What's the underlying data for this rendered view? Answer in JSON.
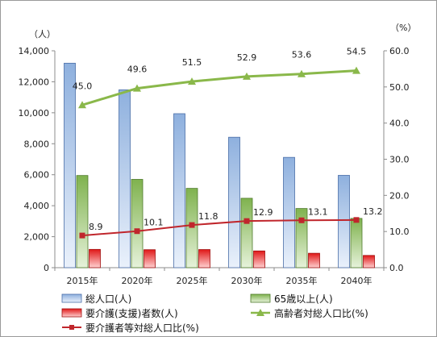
{
  "chart_data": {
    "type": "bar",
    "categories": [
      "2015年",
      "2020年",
      "2025年",
      "2030年",
      "2035年",
      "2040年"
    ],
    "left_axis": {
      "unit": "（人）",
      "ylim": [
        0,
        14000
      ],
      "ticks": [
        "0",
        "2,000",
        "4,000",
        "6,000",
        "8,000",
        "10,000",
        "12,000",
        "14,000"
      ]
    },
    "right_axis": {
      "unit": "（%）",
      "ylim": [
        0,
        60
      ],
      "ticks": [
        "0.0",
        "10.0",
        "20.0",
        "30.0",
        "40.0",
        "50.0",
        "60.0"
      ]
    },
    "bar_series": [
      {
        "name": "総人口(人)",
        "values": [
          13200,
          11480,
          9940,
          8420,
          7120,
          5960
        ],
        "color": "#8eb0de"
      },
      {
        "name": "65歳以上(人)",
        "values": [
          5950,
          5700,
          5120,
          4480,
          3820,
          3180
        ],
        "color": "#90c060"
      },
      {
        "name": "要介護(支援)者数(人)",
        "values": [
          1180,
          1160,
          1170,
          1080,
          930,
          790
        ],
        "color": "#e02020"
      }
    ],
    "line_series": [
      {
        "name": "高齢者対総人口比(%)",
        "values": [
          45.0,
          49.6,
          51.5,
          52.9,
          53.6,
          54.5
        ],
        "labels": [
          "45.0",
          "49.6",
          "51.5",
          "52.9",
          "53.6",
          "54.5"
        ],
        "color": "#8ab84a"
      },
      {
        "name": "要介護者等対総人口比(%)",
        "values": [
          8.9,
          10.1,
          11.8,
          12.9,
          13.1,
          13.2
        ],
        "labels": [
          "8.9",
          "10.1",
          "11.8",
          "12.9",
          "13.1",
          "13.2"
        ],
        "color": "#c0262c"
      }
    ],
    "grid": false,
    "legend_position": "bottom"
  }
}
